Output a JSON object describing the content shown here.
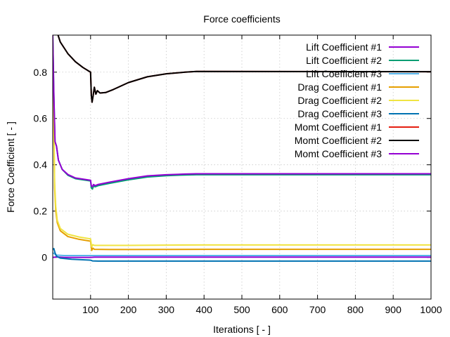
{
  "chart_data": {
    "type": "line",
    "title": "Force coefficients",
    "xlabel": "Iterations [ - ]",
    "ylabel": "Force Coefficient [ - ]",
    "xlim": [
      0,
      1000
    ],
    "ylim": [
      -0.18,
      0.96
    ],
    "x_ticks": [
      100,
      200,
      300,
      400,
      500,
      600,
      700,
      800,
      900,
      1000
    ],
    "x_tick_labels": [
      "100",
      "200",
      "300",
      "400",
      "500",
      "600",
      "700",
      "800",
      "900",
      "1000"
    ],
    "y_ticks": [
      0,
      0.2,
      0.4,
      0.6,
      0.8
    ],
    "y_tick_labels": [
      "0",
      "0.2",
      "0.4",
      "0.6",
      "0.8"
    ],
    "grid": true,
    "legend_position": "top-right",
    "series": [
      {
        "name": "Lift Coefficient #1",
        "color": "#9400d3",
        "points": [
          [
            0,
            0.0
          ],
          [
            10,
            0.002
          ],
          [
            30,
            0.0
          ],
          [
            100,
            0.0
          ],
          [
            110,
            0.001
          ],
          [
            200,
            0.001
          ],
          [
            1000,
            0.001
          ]
        ]
      },
      {
        "name": "Lift Coefficient #2",
        "color": "#009e73",
        "points": [
          [
            0,
            0.96
          ],
          [
            3,
            0.7
          ],
          [
            6,
            0.5
          ],
          [
            10,
            0.48
          ],
          [
            15,
            0.42
          ],
          [
            25,
            0.38
          ],
          [
            40,
            0.355
          ],
          [
            60,
            0.34
          ],
          [
            80,
            0.335
          ],
          [
            100,
            0.33
          ],
          [
            102,
            0.3
          ],
          [
            105,
            0.295
          ],
          [
            108,
            0.31
          ],
          [
            112,
            0.305
          ],
          [
            120,
            0.31
          ],
          [
            150,
            0.32
          ],
          [
            200,
            0.335
          ],
          [
            250,
            0.347
          ],
          [
            300,
            0.353
          ],
          [
            350,
            0.356
          ],
          [
            380,
            0.357
          ],
          [
            1000,
            0.357
          ]
        ]
      },
      {
        "name": "Lift Coefficient #3",
        "color": "#56b4e9",
        "points": [
          [
            0,
            0.02
          ],
          [
            10,
            0.01
          ],
          [
            30,
            0.008
          ],
          [
            100,
            0.008
          ],
          [
            200,
            0.008
          ],
          [
            1000,
            0.008
          ]
        ]
      },
      {
        "name": "Drag Coefficient #1",
        "color": "#e69f00",
        "points": [
          [
            0,
            0.78
          ],
          [
            3,
            0.55
          ],
          [
            5,
            0.3
          ],
          [
            8,
            0.2
          ],
          [
            12,
            0.15
          ],
          [
            20,
            0.115
          ],
          [
            40,
            0.09
          ],
          [
            70,
            0.078
          ],
          [
            100,
            0.07
          ],
          [
            103,
            0.03
          ],
          [
            106,
            0.04
          ],
          [
            110,
            0.035
          ],
          [
            150,
            0.034
          ],
          [
            200,
            0.034
          ],
          [
            400,
            0.035
          ],
          [
            1000,
            0.035
          ]
        ]
      },
      {
        "name": "Drag Coefficient #2",
        "color": "#f0e442",
        "points": [
          [
            0,
            0.78
          ],
          [
            3,
            0.55
          ],
          [
            5,
            0.32
          ],
          [
            8,
            0.22
          ],
          [
            12,
            0.16
          ],
          [
            20,
            0.125
          ],
          [
            40,
            0.1
          ],
          [
            70,
            0.088
          ],
          [
            100,
            0.08
          ],
          [
            103,
            0.045
          ],
          [
            106,
            0.055
          ],
          [
            110,
            0.052
          ],
          [
            150,
            0.052
          ],
          [
            200,
            0.052
          ],
          [
            400,
            0.054
          ],
          [
            1000,
            0.054
          ]
        ]
      },
      {
        "name": "Drag Coefficient #3",
        "color": "#0072b2",
        "points": [
          [
            0,
            0.035
          ],
          [
            3,
            0.038
          ],
          [
            6,
            0.02
          ],
          [
            10,
            0.005
          ],
          [
            20,
            -0.003
          ],
          [
            50,
            -0.008
          ],
          [
            100,
            -0.012
          ],
          [
            105,
            -0.015
          ],
          [
            120,
            -0.016
          ],
          [
            200,
            -0.016
          ],
          [
            1000,
            -0.016
          ]
        ]
      },
      {
        "name": "Momt Coefficient #1",
        "color": "#e51e10",
        "points": [
          [
            0,
            1.05
          ],
          [
            5,
            1.02
          ],
          [
            10,
            0.98
          ],
          [
            20,
            0.93
          ],
          [
            40,
            0.88
          ],
          [
            60,
            0.845
          ],
          [
            80,
            0.82
          ],
          [
            100,
            0.8
          ],
          [
            102,
            0.7
          ],
          [
            104,
            0.67
          ],
          [
            107,
            0.7
          ],
          [
            110,
            0.735
          ],
          [
            114,
            0.705
          ],
          [
            118,
            0.72
          ],
          [
            125,
            0.71
          ],
          [
            140,
            0.712
          ],
          [
            160,
            0.725
          ],
          [
            200,
            0.755
          ],
          [
            250,
            0.78
          ],
          [
            300,
            0.793
          ],
          [
            350,
            0.8
          ],
          [
            380,
            0.803
          ],
          [
            1000,
            0.802
          ]
        ]
      },
      {
        "name": "Momt Coefficient #2",
        "color": "#000000",
        "points": [
          [
            0,
            1.05
          ],
          [
            5,
            1.02
          ],
          [
            10,
            0.98
          ],
          [
            20,
            0.93
          ],
          [
            40,
            0.88
          ],
          [
            60,
            0.845
          ],
          [
            80,
            0.82
          ],
          [
            100,
            0.8
          ],
          [
            102,
            0.7
          ],
          [
            104,
            0.67
          ],
          [
            107,
            0.7
          ],
          [
            110,
            0.735
          ],
          [
            114,
            0.705
          ],
          [
            118,
            0.72
          ],
          [
            125,
            0.71
          ],
          [
            140,
            0.712
          ],
          [
            160,
            0.725
          ],
          [
            200,
            0.755
          ],
          [
            250,
            0.78
          ],
          [
            300,
            0.793
          ],
          [
            350,
            0.8
          ],
          [
            380,
            0.803
          ],
          [
            1000,
            0.802
          ]
        ]
      },
      {
        "name": "Momt Coefficient #3",
        "color": "#9400d3",
        "points": [
          [
            0,
            0.96
          ],
          [
            3,
            0.7
          ],
          [
            6,
            0.5
          ],
          [
            10,
            0.48
          ],
          [
            15,
            0.42
          ],
          [
            25,
            0.38
          ],
          [
            40,
            0.358
          ],
          [
            60,
            0.343
          ],
          [
            80,
            0.338
          ],
          [
            100,
            0.333
          ],
          [
            102,
            0.31
          ],
          [
            105,
            0.305
          ],
          [
            108,
            0.315
          ],
          [
            112,
            0.31
          ],
          [
            120,
            0.315
          ],
          [
            150,
            0.325
          ],
          [
            200,
            0.34
          ],
          [
            250,
            0.352
          ],
          [
            300,
            0.357
          ],
          [
            350,
            0.36
          ],
          [
            380,
            0.361
          ],
          [
            1000,
            0.361
          ]
        ]
      }
    ]
  }
}
